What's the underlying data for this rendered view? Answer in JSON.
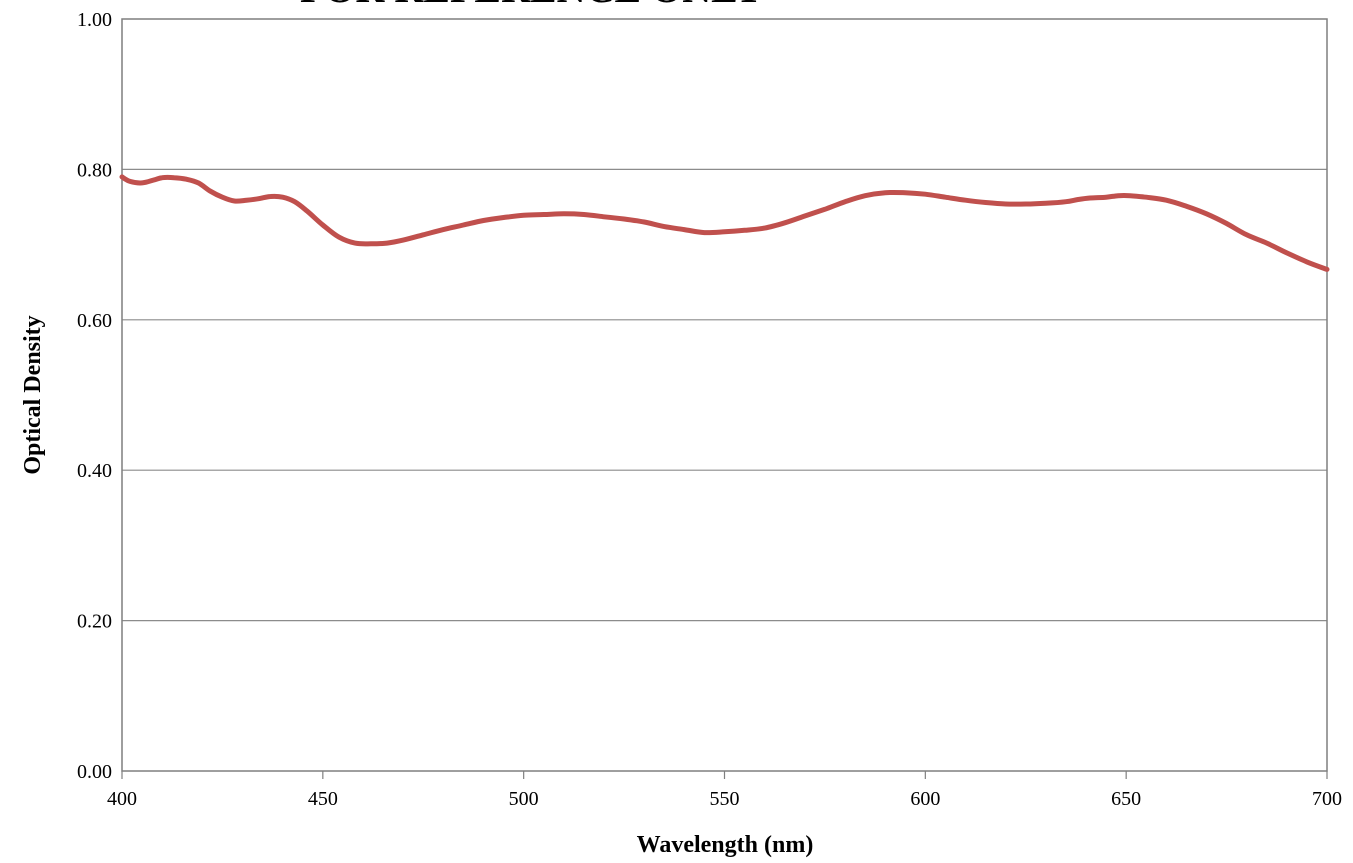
{
  "chart_data": {
    "type": "line",
    "title": "",
    "watermark_text": "FOR REFERENCE ONLY",
    "xlabel": "Wavelength (nm)",
    "ylabel": "Optical Density",
    "xlim": [
      400,
      700
    ],
    "ylim": [
      0.0,
      1.0
    ],
    "x_ticks": [
      400,
      450,
      500,
      550,
      600,
      650,
      700
    ],
    "x_tick_labels": [
      "400",
      "450",
      "500",
      "550",
      "600",
      "650",
      "700"
    ],
    "y_ticks": [
      0.0,
      0.2,
      0.4,
      0.6,
      0.8,
      1.0
    ],
    "y_tick_labels": [
      "0.00",
      "0.20",
      "0.40",
      "0.60",
      "0.80",
      "1.00"
    ],
    "grid": "horizontal",
    "legend": "none",
    "line_color": "#C0504D",
    "series": [
      {
        "x": [
          400,
          402,
          405,
          408,
          410,
          413,
          416,
          419,
          422,
          425,
          428,
          431,
          434,
          437,
          440,
          443,
          446,
          450,
          454,
          458,
          462,
          466,
          470,
          475,
          480,
          485,
          490,
          495,
          500,
          505,
          510,
          515,
          520,
          525,
          530,
          535,
          540,
          545,
          550,
          555,
          560,
          565,
          570,
          575,
          580,
          585,
          590,
          595,
          600,
          605,
          610,
          615,
          620,
          625,
          630,
          635,
          638,
          641,
          645,
          648,
          651,
          655,
          660,
          665,
          670,
          675,
          680,
          685,
          690,
          695,
          700
        ],
        "y": [
          0.79,
          0.784,
          0.782,
          0.786,
          0.789,
          0.789,
          0.787,
          0.782,
          0.771,
          0.763,
          0.758,
          0.759,
          0.761,
          0.764,
          0.763,
          0.757,
          0.745,
          0.726,
          0.71,
          0.702,
          0.701,
          0.702,
          0.706,
          0.713,
          0.72,
          0.726,
          0.732,
          0.736,
          0.739,
          0.74,
          0.741,
          0.74,
          0.737,
          0.734,
          0.73,
          0.724,
          0.72,
          0.716,
          0.717,
          0.719,
          0.722,
          0.729,
          0.738,
          0.747,
          0.757,
          0.765,
          0.769,
          0.769,
          0.767,
          0.763,
          0.759,
          0.756,
          0.754,
          0.754,
          0.755,
          0.757,
          0.76,
          0.762,
          0.763,
          0.765,
          0.765,
          0.763,
          0.759,
          0.751,
          0.741,
          0.728,
          0.713,
          0.702,
          0.689,
          0.677,
          0.667
        ]
      }
    ]
  }
}
